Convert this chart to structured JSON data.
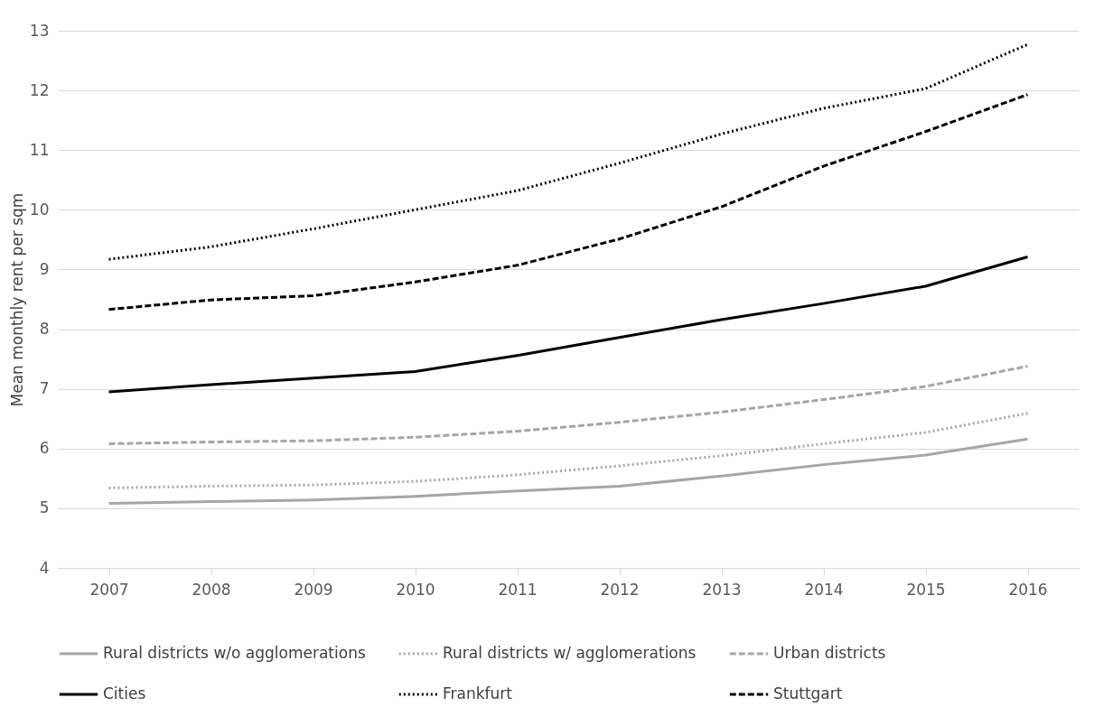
{
  "chart_data": {
    "type": "line",
    "ylabel": "Mean monthly rent per sqm",
    "categories": [
      "2007",
      "2008",
      "2009",
      "2010",
      "2011",
      "2012",
      "2013",
      "2014",
      "2015",
      "2016"
    ],
    "ylim": [
      4,
      13
    ],
    "yticks": [
      4,
      5,
      6,
      7,
      8,
      9,
      10,
      11,
      12,
      13
    ],
    "grid": "y",
    "legend": "bottom",
    "marker": "none",
    "series": [
      {
        "name": "Rural districts w/o agglomerations",
        "color": "#a6a6a6",
        "line_style": "solid",
        "values": [
          5.08,
          5.11,
          5.14,
          5.2,
          5.29,
          5.37,
          5.54,
          5.73,
          5.89,
          6.16
        ]
      },
      {
        "name": "Rural districts w/ agglomerations",
        "color": "#a6a6a6",
        "line_style": "dotted",
        "values": [
          5.34,
          5.37,
          5.39,
          5.45,
          5.56,
          5.71,
          5.88,
          6.08,
          6.27,
          6.59
        ]
      },
      {
        "name": "Urban districts",
        "color": "#a6a6a6",
        "line_style": "dashed",
        "values": [
          6.08,
          6.11,
          6.13,
          6.19,
          6.29,
          6.44,
          6.61,
          6.82,
          7.04,
          7.38
        ]
      },
      {
        "name": "Cities",
        "color": "#000000",
        "line_style": "solid",
        "values": [
          6.95,
          7.07,
          7.18,
          7.29,
          7.56,
          7.86,
          8.16,
          8.43,
          8.72,
          9.21
        ]
      },
      {
        "name": "Frankfurt",
        "color": "#000000",
        "line_style": "dotted",
        "values": [
          9.17,
          9.38,
          9.68,
          10.0,
          10.32,
          10.78,
          11.27,
          11.7,
          12.03,
          12.77
        ]
      },
      {
        "name": "Stuttgart",
        "color": "#000000",
        "line_style": "dashed",
        "values": [
          8.33,
          8.49,
          8.56,
          8.79,
          9.07,
          9.51,
          10.05,
          10.73,
          11.31,
          11.93
        ]
      }
    ]
  }
}
